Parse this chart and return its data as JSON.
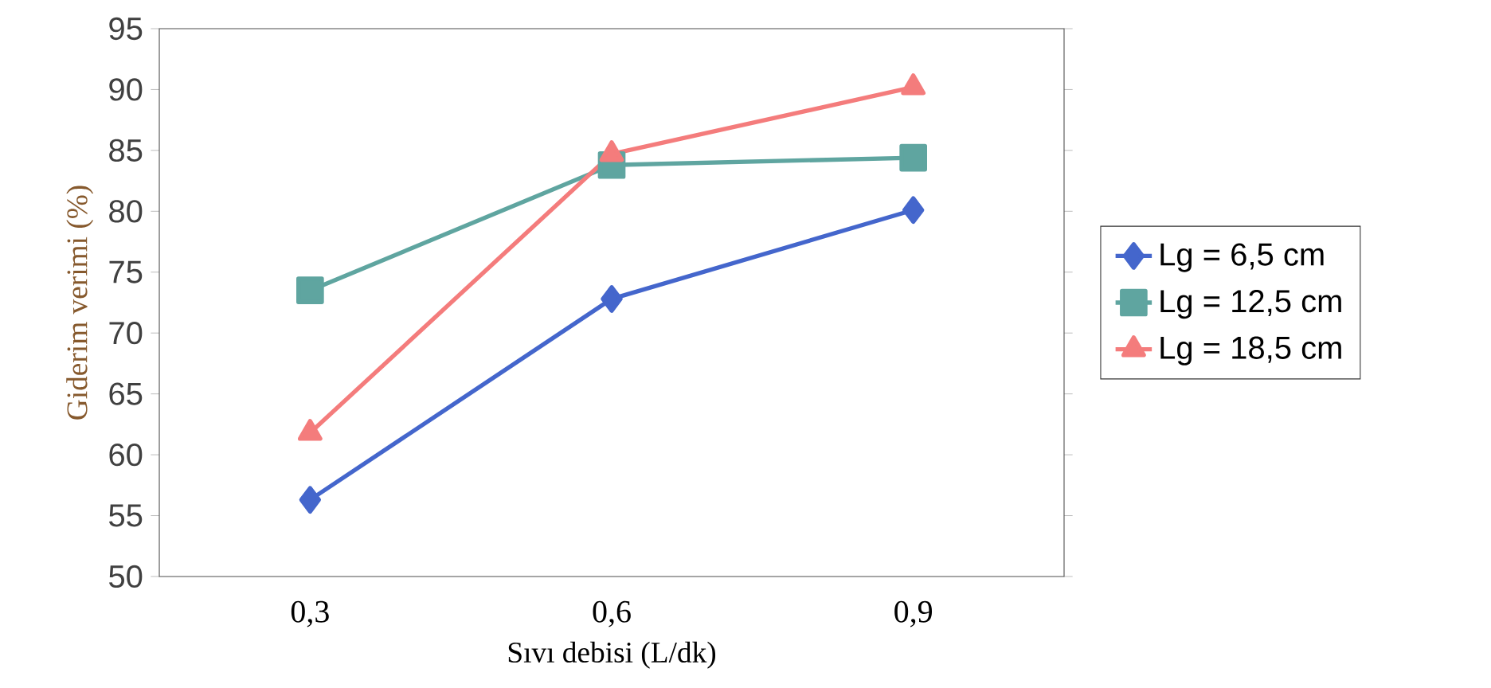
{
  "chart_data": {
    "type": "line",
    "xlabel": "Sıvı debisi (L/dk)",
    "ylabel": "Giderim verimi (%)",
    "categories": [
      "0,3",
      "0,6",
      "0,9"
    ],
    "series": [
      {
        "name": "Lg = 6,5 cm",
        "color": "#4466cc",
        "marker": "diamond",
        "values": [
          56.3,
          72.8,
          80.1
        ]
      },
      {
        "name": "Lg = 12,5 cm",
        "color": "#5fa5a0",
        "marker": "square",
        "values": [
          73.5,
          83.8,
          84.4
        ]
      },
      {
        "name": "Lg = 18,5 cm",
        "color": "#f47c7c",
        "marker": "triangle",
        "values": [
          61.8,
          84.7,
          90.2
        ]
      }
    ],
    "ylim": [
      50,
      95
    ],
    "yticks": [
      50,
      55,
      60,
      65,
      70,
      75,
      80,
      85,
      90,
      95
    ],
    "grid": false,
    "legend": "right"
  }
}
